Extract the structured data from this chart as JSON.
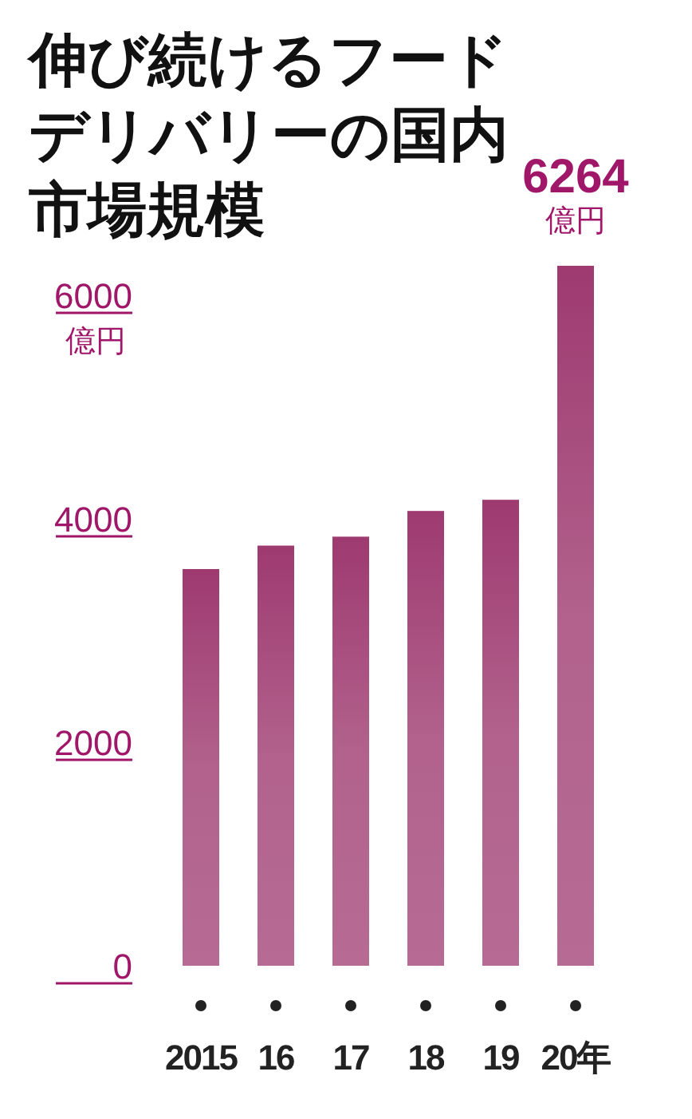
{
  "chart_data": {
    "type": "bar",
    "title": "伸び続けるフードデリバリーの国内市場規模",
    "ylabel": "億円",
    "categories": [
      "2015",
      "16",
      "17",
      "18",
      "19",
      "20年"
    ],
    "values": [
      3550,
      3760,
      3840,
      4070,
      4170,
      6264
    ],
    "value_labels": [
      null,
      null,
      null,
      null,
      null,
      "6264\n億円"
    ],
    "color": "#9e3a70",
    "ylim": [
      0,
      6264
    ],
    "yticks": [
      0,
      2000,
      4000,
      6000
    ]
  }
}
